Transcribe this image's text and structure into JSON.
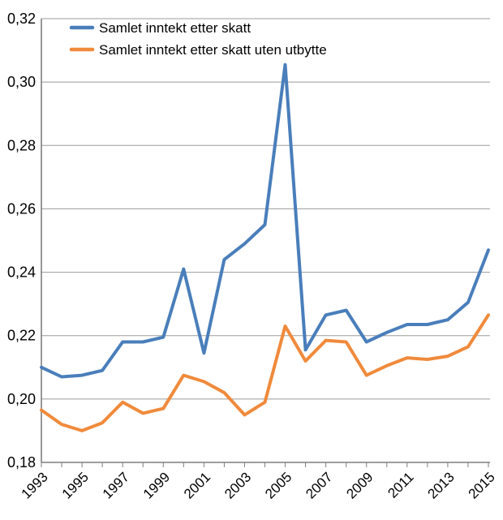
{
  "chart_data": {
    "type": "line",
    "title": "",
    "xlabel": "",
    "ylabel": "",
    "grid": true,
    "legend_position": "top-left-inside",
    "decimal_separator": ",",
    "x": [
      1993,
      1994,
      1995,
      1996,
      1997,
      1998,
      1999,
      2000,
      2001,
      2002,
      2003,
      2004,
      2005,
      2006,
      2007,
      2008,
      2009,
      2010,
      2011,
      2012,
      2013,
      2014,
      2015
    ],
    "series": [
      {
        "name": "Samlet inntekt etter skatt",
        "color": "#4A7EBB",
        "values": [
          0.21,
          0.207,
          0.2075,
          0.209,
          0.218,
          0.218,
          0.2195,
          0.241,
          0.2145,
          0.244,
          0.249,
          0.255,
          0.3055,
          0.2155,
          0.2265,
          0.228,
          0.218,
          0.221,
          0.2235,
          0.2235,
          0.225,
          0.2305,
          0.247
        ]
      },
      {
        "name": "Samlet inntekt etter skatt uten utbytte",
        "color": "#F08A3C",
        "values": [
          0.1965,
          0.192,
          0.19,
          0.1925,
          0.199,
          0.1955,
          0.197,
          0.2075,
          0.2055,
          0.202,
          0.195,
          0.199,
          0.223,
          0.212,
          0.2185,
          0.218,
          0.2075,
          0.2105,
          0.213,
          0.2125,
          0.2135,
          0.2165,
          0.2265
        ]
      }
    ],
    "ylim": [
      0.18,
      0.32
    ],
    "y_ticks": {
      "values": [
        0.18,
        0.2,
        0.22,
        0.24,
        0.26,
        0.28,
        0.3,
        0.32
      ],
      "labels": [
        "0,18",
        "0,20",
        "0,22",
        "0,24",
        "0,26",
        "0,28",
        "0,30",
        "0,32"
      ]
    },
    "xtick_labels": [
      "1993",
      "1995",
      "1997",
      "1999",
      "2001",
      "2003",
      "2005",
      "2007",
      "2009",
      "2011",
      "2013",
      "2015"
    ]
  },
  "colors": {
    "grid": "#9B9B9B",
    "axis": "#7F7F7F",
    "text": "#000000",
    "background": "#FFFFFF"
  }
}
